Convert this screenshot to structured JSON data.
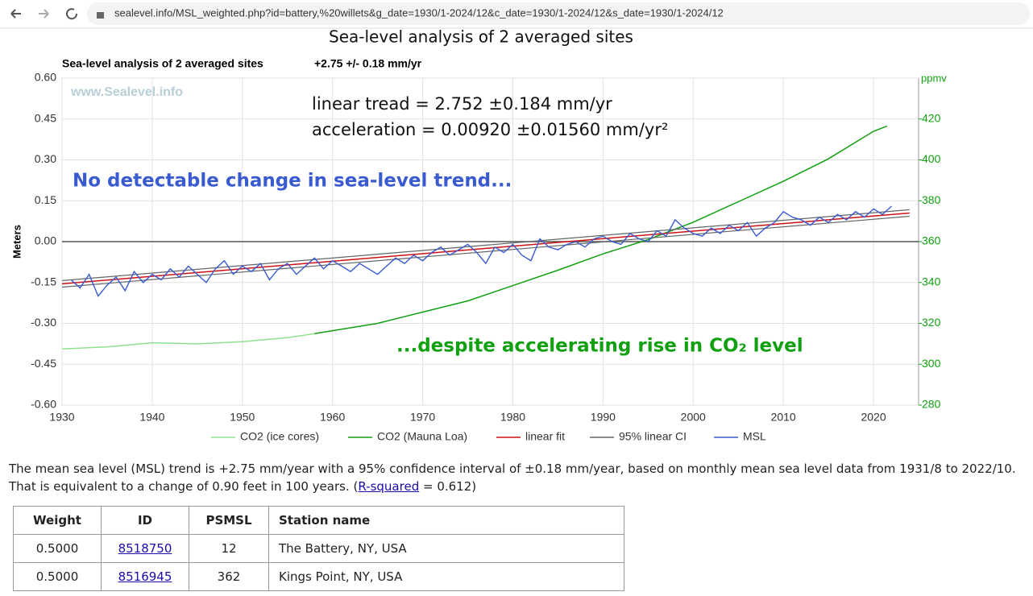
{
  "url": "sealevel.info/MSL_weighted.php?id=battery,%20willets&g_date=1930/1-2024/12&c_date=1930/1-2024/12&s_date=1930/1-2024/12",
  "page_title": "Sea-level analysis of 2 averaged sites",
  "chart_data": {
    "type": "line",
    "title": "Sea-level analysis of 2 averaged sites",
    "subtitle": "+2.75 +/- 0.18 mm/yr",
    "watermark": "www.Sealevel.info",
    "annotations": [
      "linear tread = 2.752 ±0.184 mm/yr",
      "acceleration = 0.00920 ±0.01560 mm/yr²",
      "No detectable change in sea-level trend...",
      "...despite accelerating rise in CO₂ level"
    ],
    "ylabel": "Meters",
    "y2label": "ppmv",
    "xlim": [
      1930,
      2025
    ],
    "xticks": [
      1930,
      1940,
      1950,
      1960,
      1970,
      1980,
      1990,
      2000,
      2010,
      2020
    ],
    "ylim": [
      -0.6,
      0.6
    ],
    "yticks": [
      {
        "value": 0.6,
        "label": "0.60"
      },
      {
        "value": 0.45,
        "label": "0.45"
      },
      {
        "value": 0.3,
        "label": "0.30"
      },
      {
        "value": 0.15,
        "label": "0.15"
      },
      {
        "value": 0,
        "label": "0.00"
      },
      {
        "value": -0.15,
        "label": "-0.15"
      },
      {
        "value": -0.3,
        "label": "-0.30"
      },
      {
        "value": -0.45,
        "label": "-0.45"
      },
      {
        "value": -0.6,
        "label": "-0.60"
      }
    ],
    "y2lim": [
      280,
      440
    ],
    "y2ticks": [
      280,
      300,
      320,
      340,
      360,
      380,
      400,
      420
    ],
    "grid": true,
    "series": [
      {
        "name": "CO2 (ice cores)",
        "color": "#90e090",
        "axis": "y2",
        "x": [
          1930,
          1935,
          1940,
          1945,
          1950,
          1955,
          1958
        ],
        "values": [
          307.5,
          308.5,
          310.5,
          310,
          311,
          313,
          315
        ]
      },
      {
        "name": "CO2 (Mauna Loa)",
        "color": "#10a010",
        "axis": "y2",
        "x": [
          1958,
          1965,
          1970,
          1975,
          1980,
          1985,
          1990,
          1995,
          2000,
          2005,
          2010,
          2015,
          2020,
          2021.5
        ],
        "values": [
          315,
          320,
          325.5,
          331,
          338.5,
          346,
          354,
          361,
          369.5,
          379.5,
          389.5,
          400.5,
          414,
          416.5
        ]
      },
      {
        "name": "linear fit",
        "color": "#d01010",
        "x": [
          1930,
          2024
        ],
        "values": [
          -0.155,
          0.105
        ]
      },
      {
        "name": "95% linear CI",
        "color": "#666666",
        "x": [
          1930,
          2024
        ],
        "upper": [
          -0.143,
          0.117
        ],
        "lower": [
          -0.167,
          0.093
        ]
      },
      {
        "name": "MSL",
        "color": "#3a5bd0",
        "x": [
          1931,
          1932,
          1933,
          1934,
          1935,
          1936,
          1937,
          1938,
          1939,
          1940,
          1941,
          1942,
          1943,
          1944,
          1945,
          1946,
          1947,
          1948,
          1949,
          1950,
          1951,
          1952,
          1953,
          1954,
          1955,
          1956,
          1957,
          1958,
          1959,
          1960,
          1961,
          1962,
          1963,
          1964,
          1965,
          1966,
          1967,
          1968,
          1969,
          1970,
          1971,
          1972,
          1973,
          1974,
          1975,
          1976,
          1977,
          1978,
          1979,
          1980,
          1981,
          1982,
          1983,
          1984,
          1985,
          1986,
          1987,
          1988,
          1989,
          1990,
          1991,
          1992,
          1993,
          1994,
          1995,
          1996,
          1997,
          1998,
          1999,
          2000,
          2001,
          2002,
          2003,
          2004,
          2005,
          2006,
          2007,
          2008,
          2009,
          2010,
          2011,
          2012,
          2013,
          2014,
          2015,
          2016,
          2017,
          2018,
          2019,
          2020,
          2021,
          2022
        ],
        "values": [
          -0.14,
          -0.17,
          -0.12,
          -0.2,
          -0.16,
          -0.13,
          -0.18,
          -0.11,
          -0.15,
          -0.12,
          -0.14,
          -0.1,
          -0.13,
          -0.09,
          -0.12,
          -0.15,
          -0.1,
          -0.07,
          -0.12,
          -0.09,
          -0.11,
          -0.08,
          -0.14,
          -0.1,
          -0.08,
          -0.12,
          -0.09,
          -0.06,
          -0.1,
          -0.07,
          -0.09,
          -0.11,
          -0.08,
          -0.1,
          -0.12,
          -0.09,
          -0.06,
          -0.08,
          -0.05,
          -0.07,
          -0.04,
          -0.02,
          -0.05,
          -0.03,
          -0.01,
          -0.04,
          -0.08,
          -0.02,
          -0.04,
          -0.01,
          -0.05,
          -0.07,
          0.01,
          -0.02,
          -0.03,
          -0.01,
          0,
          -0.02,
          0.01,
          0.02,
          0,
          -0.01,
          0.03,
          0.01,
          0,
          0.04,
          0.02,
          0.08,
          0.05,
          0.03,
          0.02,
          0.05,
          0.03,
          0.06,
          0.04,
          0.07,
          0.02,
          0.05,
          0.07,
          0.11,
          0.09,
          0.08,
          0.06,
          0.09,
          0.07,
          0.1,
          0.08,
          0.11,
          0.09,
          0.12,
          0.1,
          0.13
        ]
      }
    ]
  },
  "summary": {
    "before": "The mean sea level (MSL) trend is +2.75 mm/year with a 95% confidence interval of ±0.18 mm/year, based on monthly mean sea level data from 1931/8 to 2022/10. That is equivalent to a change of 0.90 feet in 100 years. (",
    "link": "R-squared",
    "after": " = 0.612)"
  },
  "table": {
    "header": [
      "Weight",
      "ID",
      "PSMSL",
      "Station name"
    ],
    "rows": [
      [
        "0.5000",
        "8518750",
        "12",
        "The Battery, NY, USA"
      ],
      [
        "0.5000",
        "8516945",
        "362",
        "Kings Point, NY, USA"
      ]
    ]
  }
}
